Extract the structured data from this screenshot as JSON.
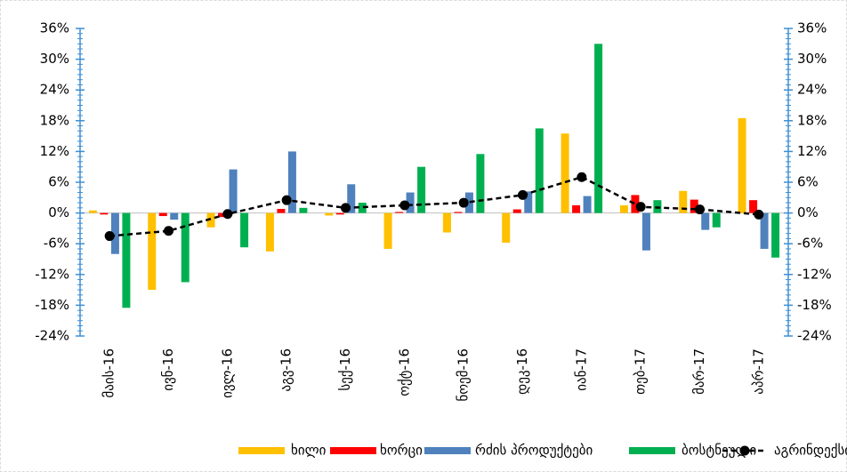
{
  "chart_data": {
    "type": "bar",
    "categories": [
      "მაის-16",
      "ივნ-16",
      "ივლ-16",
      "აგვ-16",
      "სექ-16",
      "ოქტ-16",
      "ნოემ-16",
      "დეკ-16",
      "იან-17",
      "თებ-17",
      "მარ-17",
      "აპრ-17"
    ],
    "series": [
      {
        "name": "ხილი",
        "color": "#FFC000",
        "values": [
          0.5,
          -15,
          -2.8,
          -7.5,
          -0.5,
          -7,
          -3.8,
          -5.8,
          15.5,
          1.5,
          4.3,
          18.5
        ]
      },
      {
        "name": "ხორცი",
        "color": "#FF0000",
        "values": [
          -0.3,
          -0.6,
          -0.8,
          0.8,
          -0.3,
          0.2,
          0.2,
          0.7,
          1.5,
          3.5,
          2.6,
          2.5
        ]
      },
      {
        "name": "რძის პროდუქტები",
        "color": "#4F81BD",
        "values": [
          -8,
          -1.3,
          8.5,
          12,
          5.6,
          4,
          4,
          4.2,
          3.3,
          -7.3,
          -3.3,
          -7
        ]
      },
      {
        "name": "ბოსტნეული",
        "color": "#00B050",
        "values": [
          -18.5,
          -13.5,
          -6.7,
          1,
          2,
          9,
          11.5,
          16.5,
          33,
          2.5,
          -2.8,
          -8.7
        ]
      },
      {
        "name": "აგრინდექსი",
        "color": "#000000",
        "type": "line",
        "values": [
          -4.5,
          -3.5,
          -0.2,
          2.5,
          1,
          1.5,
          2,
          3.5,
          7,
          1.2,
          0.7,
          -0.3
        ]
      }
    ],
    "ylim": [
      -24,
      36
    ],
    "yticks": [
      {
        "value": -24,
        "label": "-24%"
      },
      {
        "value": -18,
        "label": "-18%"
      },
      {
        "value": -12,
        "label": "-12%"
      },
      {
        "value": -6,
        "label": "-6%"
      },
      {
        "value": 0,
        "label": "0%"
      },
      {
        "value": 6,
        "label": "6%"
      },
      {
        "value": 12,
        "label": "12%"
      },
      {
        "value": 18,
        "label": "18%"
      },
      {
        "value": 24,
        "label": "24%"
      },
      {
        "value": 30,
        "label": "30%"
      },
      {
        "value": 36,
        "label": "36%"
      }
    ],
    "y2lim": [
      -24,
      36
    ],
    "y2ticks": [
      {
        "value": -24,
        "label": "-24%"
      },
      {
        "value": -18,
        "label": "-18%"
      },
      {
        "value": -12,
        "label": "-12%"
      },
      {
        "value": -6,
        "label": "-6%"
      },
      {
        "value": 0,
        "label": "0%"
      },
      {
        "value": 6,
        "label": "6%"
      },
      {
        "value": 12,
        "label": "12%"
      },
      {
        "value": 18,
        "label": "18%"
      },
      {
        "value": 24,
        "label": "24%"
      },
      {
        "value": 30,
        "label": "30%"
      },
      {
        "value": 36,
        "label": "36%"
      }
    ],
    "legend": "bottom"
  }
}
